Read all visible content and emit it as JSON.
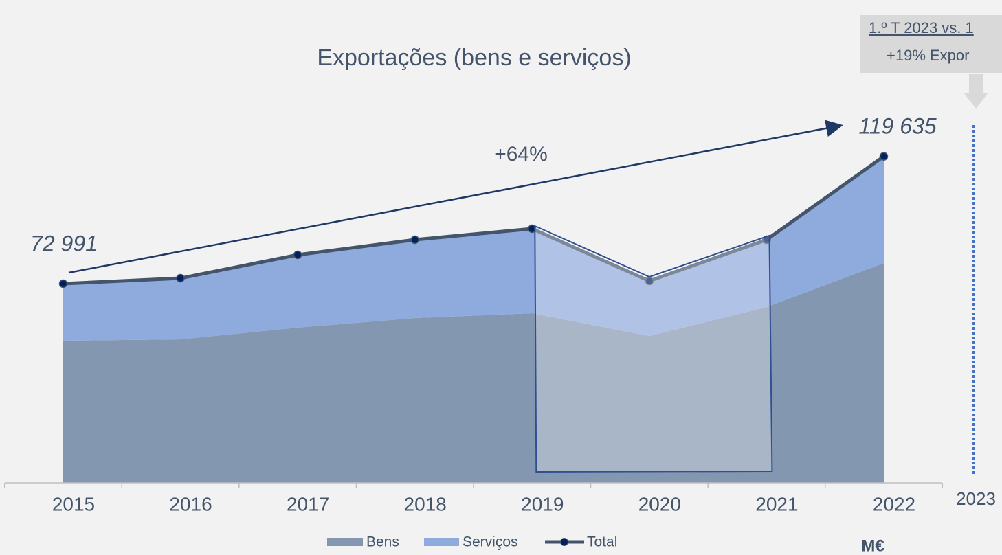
{
  "chart_data": {
    "type": "stacked-area",
    "title": "Exportações (bens e serviços)",
    "categories": [
      "2015",
      "2016",
      "2017",
      "2018",
      "2019",
      "2020",
      "2021",
      "2022"
    ],
    "series": [
      {
        "name": "Bens",
        "color": "#8497b0",
        "values": [
          52100,
          52600,
          56900,
          60400,
          62170,
          53860,
          64430,
          80540
        ]
      },
      {
        "name": "Serviços",
        "color": "#8faadc",
        "values": [
          20891,
          22400,
          26660,
          28700,
          30960,
          20140,
          24670,
          39095
        ]
      },
      {
        "name": "Total",
        "color": "#44546a",
        "marker_color": "#002060",
        "values": [
          72991,
          75000,
          83560,
          89100,
          93130,
          74000,
          89100,
          119635
        ],
        "value_labels": [
          "72 991",
          null,
          null,
          null,
          null,
          null,
          null,
          "119 635"
        ]
      }
    ],
    "ylim": [
      0,
      130000
    ],
    "growth_label": "+64%",
    "extra_category": "2023",
    "unit": "M€",
    "callout": [
      "1.º T 2023 vs. 1",
      "+19% Expor"
    ]
  }
}
